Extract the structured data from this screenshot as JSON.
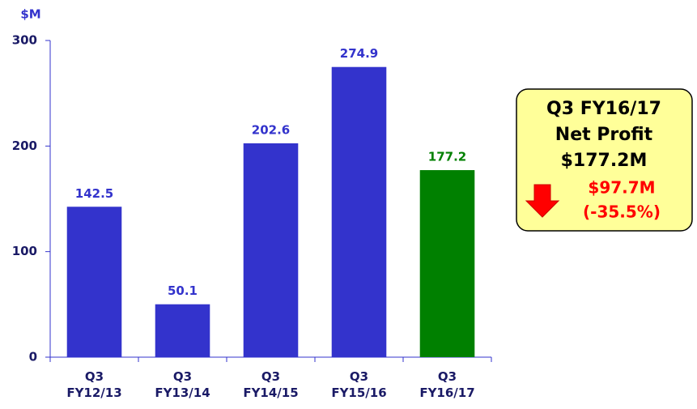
{
  "chart_data": {
    "type": "bar",
    "y_label": "$M",
    "categories": [
      "Q3 FY12/13",
      "Q3 FY13/14",
      "Q3 FY14/15",
      "Q3 FY15/16",
      "Q3 FY16/17"
    ],
    "values": [
      142.5,
      50.1,
      202.6,
      274.9,
      177.2
    ],
    "colors": [
      "#3333cc",
      "#3333cc",
      "#3333cc",
      "#3333cc",
      "#008000"
    ],
    "ylim": [
      0,
      300
    ],
    "yticks": [
      0,
      100,
      200,
      300
    ],
    "grid": false,
    "annotation": {
      "lines": [
        "Q3 FY16/17",
        "Net Profit",
        "$177.2M"
      ],
      "change": [
        "$97.7M",
        "(-35.5%)"
      ]
    }
  }
}
